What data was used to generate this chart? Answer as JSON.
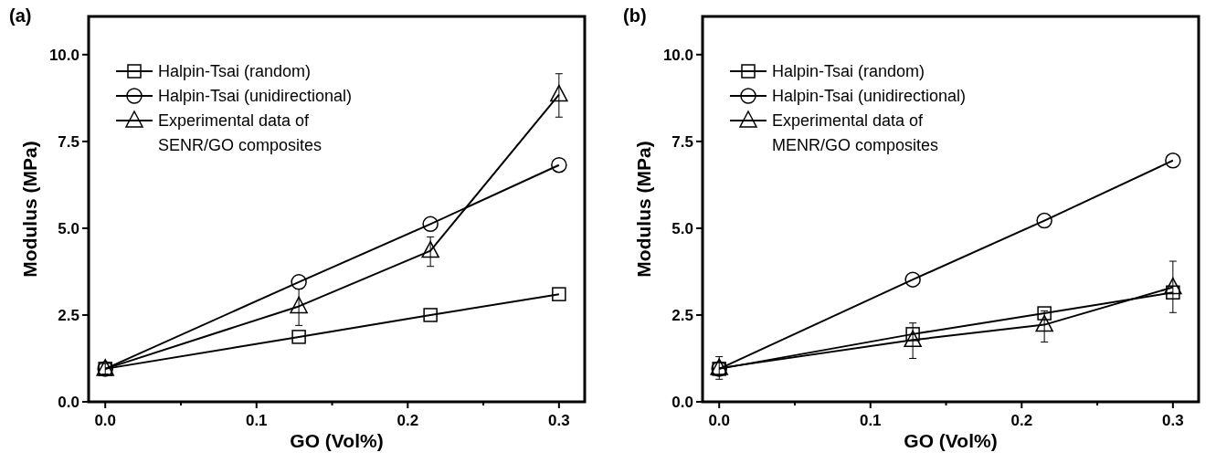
{
  "chart_data": [
    {
      "type": "line",
      "title": "(a)",
      "xlabel": "GO (Vol%)",
      "ylabel": "Modulus (MPa)",
      "x": [
        0,
        0.128,
        0.215,
        0.3
      ],
      "xlim": [
        -0.011,
        0.317
      ],
      "ylim": [
        0,
        11.1
      ],
      "xticks": [
        {
          "value": 0,
          "label": "0.0"
        },
        {
          "value": 0.05,
          "label": null
        },
        {
          "value": 0.1,
          "label": "0.1"
        },
        {
          "value": 0.15,
          "label": null
        },
        {
          "value": 0.2,
          "label": "0.2"
        },
        {
          "value": 0.25,
          "label": null
        },
        {
          "value": 0.3,
          "label": "0.3"
        }
      ],
      "yticks": [
        {
          "value": 0,
          "label": "0.0"
        },
        {
          "value": 2.5,
          "label": "2.5"
        },
        {
          "value": 5,
          "label": "5.0"
        },
        {
          "value": 7.5,
          "label": "7.5"
        },
        {
          "value": 10,
          "label": "10.0"
        }
      ],
      "legend": "top left",
      "grid": false,
      "line_style": "solid",
      "series": [
        {
          "name": "Halpin-Tsai (random)",
          "color": "#000000",
          "marker": "square",
          "values": [
            0.95,
            1.87,
            2.5,
            3.1
          ]
        },
        {
          "name": "Halpin-Tsai (unidirectional)",
          "color": "#000000",
          "marker": "circle",
          "values": [
            0.95,
            3.45,
            5.12,
            6.82
          ]
        },
        {
          "name": "Experimental data of\nSENR/GO composites",
          "color": "#000000",
          "marker": "triangle",
          "values": [
            0.95,
            2.75,
            4.35,
            8.85
          ],
          "errors": [
            [
              0.8,
              1.1
            ],
            [
              2.2,
              3.25
            ],
            [
              3.9,
              4.75
            ],
            [
              8.2,
              9.45
            ]
          ]
        }
      ]
    },
    {
      "type": "line",
      "title": "(b)",
      "xlabel": "GO (Vol%)",
      "ylabel": "Modulus (MPa)",
      "x": [
        0,
        0.128,
        0.215,
        0.3
      ],
      "xlim": [
        -0.011,
        0.317
      ],
      "ylim": [
        0,
        11.1
      ],
      "xticks": [
        {
          "value": 0,
          "label": "0.0"
        },
        {
          "value": 0.05,
          "label": null
        },
        {
          "value": 0.1,
          "label": "0.1"
        },
        {
          "value": 0.15,
          "label": null
        },
        {
          "value": 0.2,
          "label": "0.2"
        },
        {
          "value": 0.25,
          "label": null
        },
        {
          "value": 0.3,
          "label": "0.3"
        }
      ],
      "yticks": [
        {
          "value": 0,
          "label": "0.0"
        },
        {
          "value": 2.5,
          "label": "2.5"
        },
        {
          "value": 5,
          "label": "5.0"
        },
        {
          "value": 7.5,
          "label": "7.5"
        },
        {
          "value": 10,
          "label": "10.0"
        }
      ],
      "legend": "top left",
      "grid": false,
      "line_style": "solid",
      "series": [
        {
          "name": "Halpin-Tsai (random)",
          "color": "#000000",
          "marker": "square",
          "values": [
            0.95,
            1.95,
            2.55,
            3.15
          ]
        },
        {
          "name": "Halpin-Tsai (unidirectional)",
          "color": "#000000",
          "marker": "circle",
          "values": [
            0.95,
            3.52,
            5.22,
            6.95
          ]
        },
        {
          "name": "Experimental data of\nMENR/GO composites",
          "color": "#000000",
          "marker": "triangle",
          "values": [
            0.97,
            1.78,
            2.22,
            3.3
          ],
          "errors": [
            [
              0.65,
              1.3
            ],
            [
              1.25,
              2.27
            ],
            [
              1.72,
              2.62
            ],
            [
              2.57,
              4.05
            ]
          ]
        }
      ]
    }
  ]
}
